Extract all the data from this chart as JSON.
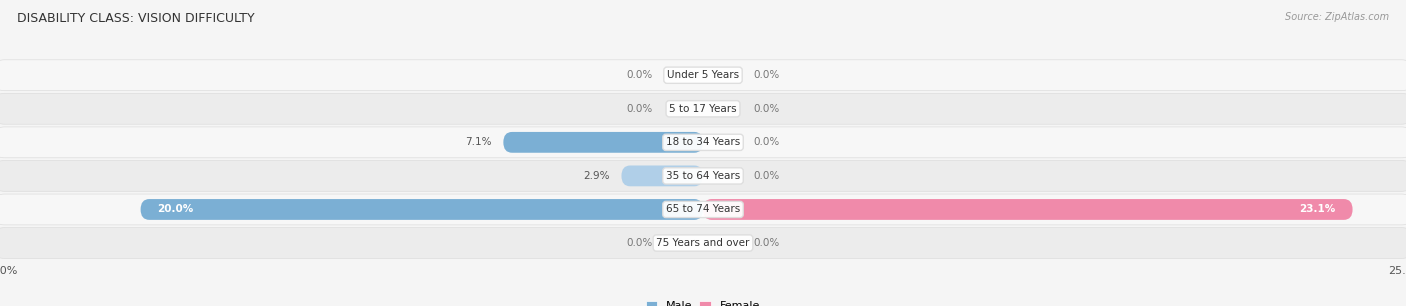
{
  "title": "DISABILITY CLASS: VISION DIFFICULTY",
  "source": "Source: ZipAtlas.com",
  "categories": [
    "Under 5 Years",
    "5 to 17 Years",
    "18 to 34 Years",
    "35 to 64 Years",
    "65 to 74 Years",
    "75 Years and over"
  ],
  "male_values": [
    0.0,
    0.0,
    7.1,
    2.9,
    20.0,
    0.0
  ],
  "female_values": [
    0.0,
    0.0,
    0.0,
    0.0,
    23.1,
    0.0
  ],
  "male_color": "#7bafd4",
  "female_color": "#f08aaa",
  "male_color_light": "#b0cfe8",
  "female_color_light": "#f5b8cb",
  "row_bg_odd": "#ececec",
  "row_bg_even": "#f7f7f7",
  "x_max": 25.0,
  "x_min": -25.0,
  "fig_bg": "#f5f5f5",
  "title_fontsize": 9,
  "source_fontsize": 7,
  "label_fontsize": 7.5,
  "value_fontsize": 7.5,
  "tick_fontsize": 8
}
